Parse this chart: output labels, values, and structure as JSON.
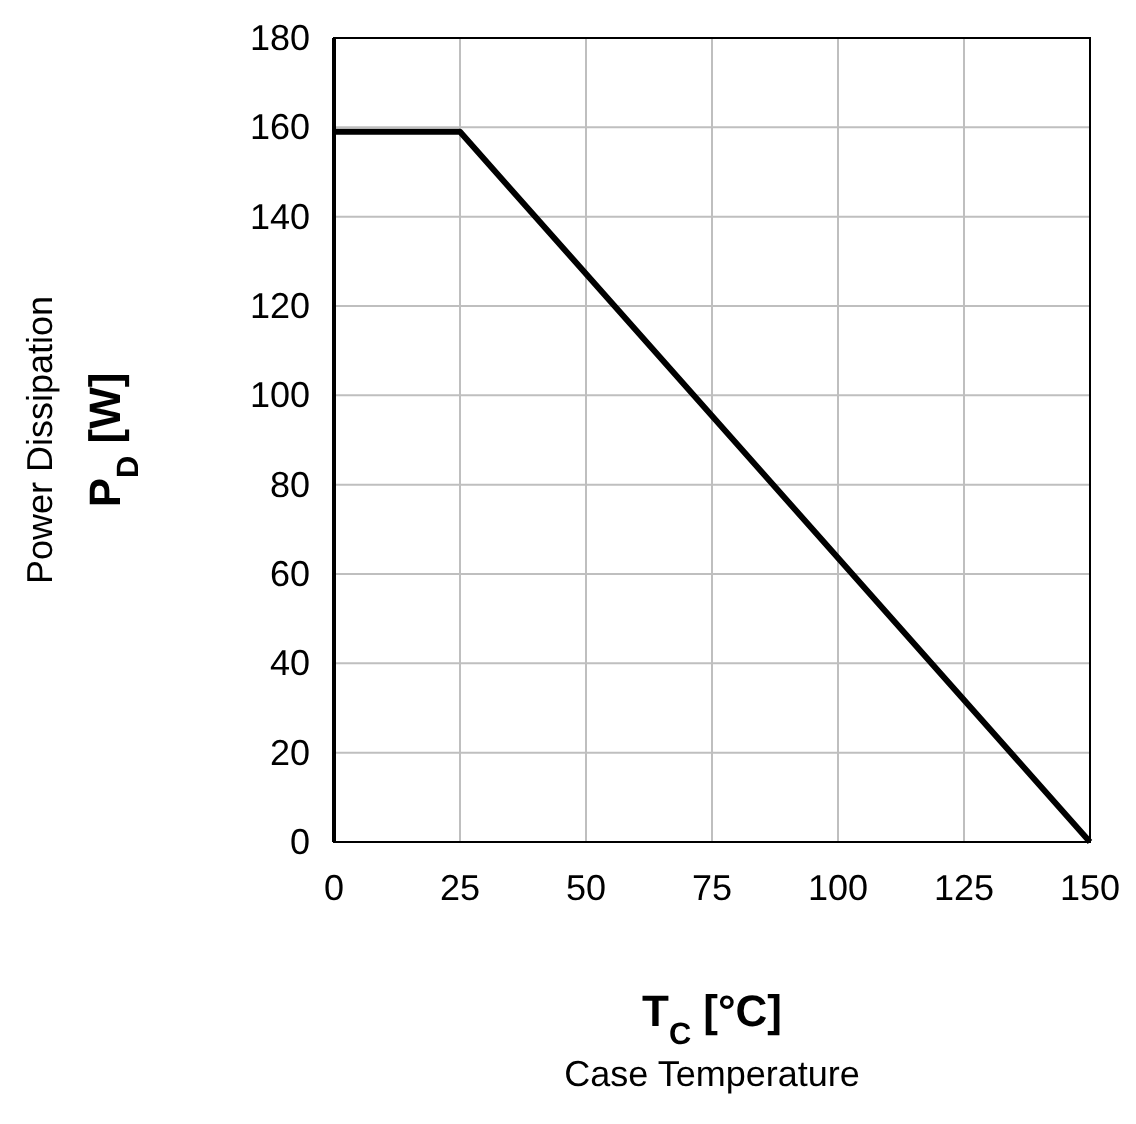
{
  "chart_data": {
    "type": "line",
    "xlabel": "T$_{C}$ [°C]\nCase Temperature",
    "ylabel": "Power Dissipation\nP$_{D}$ [W]",
    "x": [
      0,
      25,
      150
    ],
    "series": [
      {
        "color": "#000000",
        "values": [
          159,
          159,
          0
        ]
      }
    ],
    "xlim": [
      0,
      150
    ],
    "xticks": [
      0,
      25,
      50,
      75,
      100,
      125,
      150
    ],
    "ylim": [
      0,
      180
    ],
    "yticks": [
      0,
      20,
      40,
      60,
      80,
      100,
      120,
      140,
      160,
      180
    ],
    "grid": true,
    "marker": "none",
    "line_style": "solid"
  }
}
